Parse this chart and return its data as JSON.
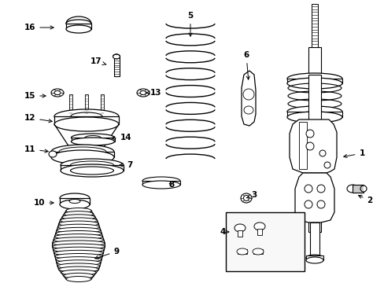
{
  "background_color": "#ffffff",
  "line_color": "#000000",
  "fig_width": 4.89,
  "fig_height": 3.6,
  "dpi": 100,
  "label_data": [
    [
      "1",
      460,
      195,
      433,
      200
    ],
    [
      "2",
      470,
      255,
      452,
      247
    ],
    [
      "3",
      323,
      248,
      313,
      252
    ],
    [
      "4",
      283,
      295,
      292,
      295
    ],
    [
      "5",
      242,
      20,
      242,
      50
    ],
    [
      "6",
      313,
      70,
      316,
      105
    ],
    [
      "7",
      165,
      210,
      148,
      210
    ],
    [
      "8",
      218,
      235,
      212,
      232
    ],
    [
      "9",
      148,
      320,
      117,
      330
    ],
    [
      "10",
      50,
      258,
      72,
      258
    ],
    [
      "11",
      38,
      190,
      65,
      193
    ],
    [
      "12",
      38,
      150,
      70,
      155
    ],
    [
      "13",
      198,
      118,
      185,
      118
    ],
    [
      "14",
      160,
      175,
      138,
      176
    ],
    [
      "15",
      38,
      122,
      62,
      122
    ],
    [
      "16",
      38,
      35,
      72,
      35
    ],
    [
      "17",
      122,
      78,
      138,
      83
    ]
  ]
}
